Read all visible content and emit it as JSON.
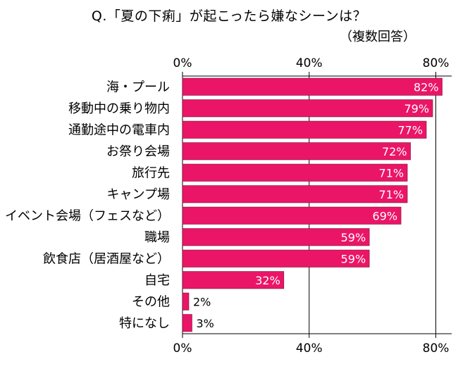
{
  "chart_data": {
    "type": "bar",
    "orientation": "horizontal",
    "title": "Q.「夏の下痢」が起こったら嫌なシーンは？",
    "subtitle": "（複数回答）",
    "categories": [
      "海・プール",
      "移動中の乗り物内",
      "通勤途中の電車内",
      "お祭り会場",
      "旅行先",
      "キャンプ場",
      "イベント会場（フェスなど）",
      "職場",
      "飲食店（居酒屋など）",
      "自宅",
      "その他",
      "特になし"
    ],
    "values": [
      82,
      79,
      77,
      72,
      71,
      71,
      69,
      59,
      59,
      32,
      2,
      3
    ],
    "value_labels": [
      "82%",
      "79%",
      "77%",
      "72%",
      "71%",
      "71%",
      "69%",
      "59%",
      "59%",
      "32%",
      "2%",
      "3%"
    ],
    "xlim": [
      0,
      85
    ],
    "x_ticks": [
      0,
      40,
      80
    ],
    "x_tick_labels": [
      "0%",
      "40%",
      "80%"
    ],
    "grid": true,
    "colors": {
      "bar": "#EB1567",
      "bar_border": "#7A0A30",
      "label_inside": "#ffffff",
      "label_outside": "#000000",
      "grid": "#000000"
    }
  }
}
